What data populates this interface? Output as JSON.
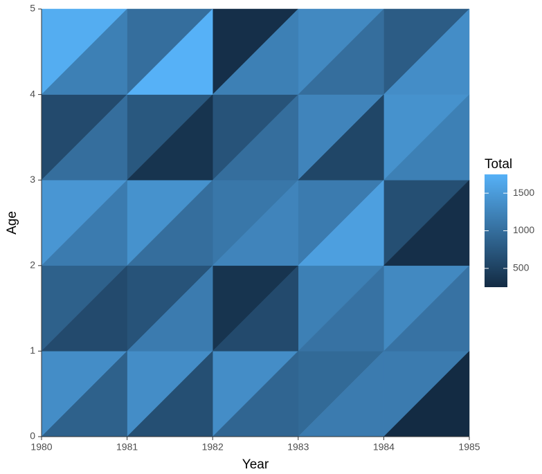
{
  "chart_data": {
    "type": "lexis-heatmap",
    "x_label": "Year",
    "y_label": "Age",
    "xlim": [
      1980,
      1985
    ],
    "xticks": [
      1980,
      1981,
      1982,
      1983,
      1984,
      1985
    ],
    "ylim": [
      0,
      5
    ],
    "yticks": [
      0,
      1,
      2,
      3,
      4,
      5
    ],
    "upper": [
      [
        1350,
        1350,
        1350,
        950,
        1150
      ],
      [
        850,
        700,
        350,
        1200,
        1300
      ],
      [
        1450,
        1400,
        1100,
        1150,
        650
      ],
      [
        600,
        750,
        700,
        1250,
        1400
      ],
      [
        1700,
        1000,
        300,
        1300,
        800
      ]
    ],
    "lower": [
      [
        850,
        650,
        900,
        1150,
        250
      ],
      [
        600,
        1150,
        600,
        1050,
        1050
      ],
      [
        1150,
        1000,
        1250,
        1550,
        300
      ],
      [
        1000,
        350,
        1000,
        550,
        1200
      ],
      [
        1200,
        1750,
        1200,
        1000,
        1350
      ]
    ],
    "legend_title": "Total",
    "clim": [
      250,
      1750
    ],
    "cticks": [
      500,
      1000,
      1500
    ],
    "color_low": "#132B43",
    "color_high": "#56B1F7"
  }
}
